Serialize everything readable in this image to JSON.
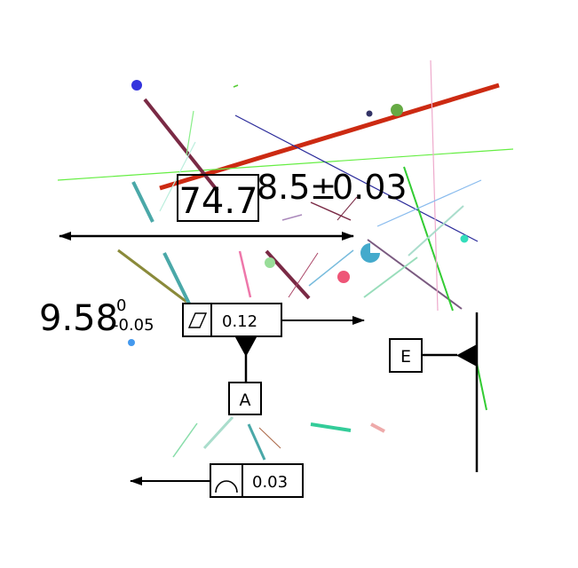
{
  "dimensions": {
    "basic": "74.7",
    "toleranced": {
      "nominal": "8.5",
      "symbol": "±",
      "tol": "0.03"
    },
    "limits": {
      "nominal": "9.58",
      "upper": "0",
      "lower": "-0.05"
    }
  },
  "frames": {
    "parallelism": {
      "symbol": "parallelogram-icon",
      "value": "0.12"
    },
    "profile": {
      "symbol": "arc-icon",
      "value": "0.03"
    }
  },
  "datums": {
    "a": "A",
    "e": "E"
  },
  "colors": {
    "red": "#cc2a12",
    "maroon": "#7a2a45",
    "green": "#55dd33",
    "navy": "#2a2a9a",
    "teal": "#4aa8a8",
    "olive": "#8a8a3a",
    "pink": "#ee5577",
    "mint": "#33cc99"
  }
}
